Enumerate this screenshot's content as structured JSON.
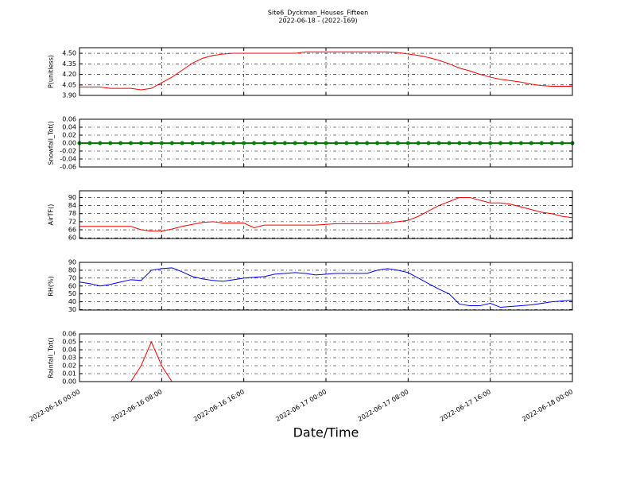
{
  "chart_data": [
    {
      "type": "line",
      "title": "Site6_Dyckman_Houses_Fifteen",
      "subtitle": "2022-06-18 - (2022-169)",
      "ylabel": "P(unitless)",
      "color": "#ff0000",
      "grid": true,
      "xlim": [
        "2022-06-16 00:00",
        "2022-06-18 00:00"
      ],
      "ylim": [
        3.9,
        4.58
      ],
      "yticks": [
        {
          "value": 3.9,
          "label": "3.90"
        },
        4.05,
        {
          "value": 4.2,
          "label": "4.20"
        },
        4.35,
        {
          "value": 4.5,
          "label": "4.50"
        }
      ],
      "x": [
        "2022-06-16 00:00",
        "2022-06-16 01:00",
        "2022-06-16 02:00",
        "2022-06-16 03:00",
        "2022-06-16 04:00",
        "2022-06-16 05:00",
        "2022-06-16 06:00",
        "2022-06-16 07:00",
        "2022-06-16 08:00",
        "2022-06-16 09:00",
        "2022-06-16 10:00",
        "2022-06-16 11:00",
        "2022-06-16 12:00",
        "2022-06-16 13:00",
        "2022-06-16 14:00",
        "2022-06-16 15:00",
        "2022-06-16 16:00",
        "2022-06-16 17:00",
        "2022-06-16 18:00",
        "2022-06-16 19:00",
        "2022-06-16 20:00",
        "2022-06-16 21:00",
        "2022-06-16 22:00",
        "2022-06-16 23:00",
        "2022-06-17 00:00",
        "2022-06-17 01:00",
        "2022-06-17 02:00",
        "2022-06-17 03:00",
        "2022-06-17 04:00",
        "2022-06-17 05:00",
        "2022-06-17 06:00",
        "2022-06-17 07:00",
        "2022-06-17 08:00",
        "2022-06-17 09:00",
        "2022-06-17 10:00",
        "2022-06-17 11:00",
        "2022-06-17 12:00",
        "2022-06-17 13:00",
        "2022-06-17 14:00",
        "2022-06-17 15:00",
        "2022-06-17 16:00",
        "2022-06-17 17:00",
        "2022-06-17 18:00",
        "2022-06-17 19:00",
        "2022-06-17 20:00",
        "2022-06-17 21:00",
        "2022-06-17 22:00",
        "2022-06-17 23:00",
        "2022-06-18 00:00"
      ],
      "values": [
        4.02,
        4.02,
        4.02,
        4.0,
        4.0,
        4.0,
        3.98,
        4.0,
        4.08,
        4.16,
        4.26,
        4.36,
        4.43,
        4.47,
        4.49,
        4.5,
        4.5,
        4.5,
        4.5,
        4.5,
        4.5,
        4.5,
        4.52,
        4.52,
        4.52,
        4.52,
        4.52,
        4.52,
        4.52,
        4.52,
        4.52,
        4.51,
        4.49,
        4.47,
        4.44,
        4.4,
        4.35,
        4.29,
        4.25,
        4.2,
        4.16,
        4.13,
        4.11,
        4.09,
        4.06,
        4.04,
        4.03,
        4.03,
        4.03
      ]
    },
    {
      "type": "line",
      "ylabel": "Snowfall_Tot()",
      "color": "#008000",
      "marker": "circle",
      "grid": true,
      "xlim": [
        "2022-06-16 00:00",
        "2022-06-18 00:00"
      ],
      "ylim": [
        -0.06,
        0.06
      ],
      "yticks": [
        -0.06,
        -0.04,
        -0.02,
        {
          "value": 0,
          "label": "0.00"
        },
        0.02,
        0.04,
        0.06
      ],
      "x": [
        "2022-06-16 00:00",
        "2022-06-16 01:00",
        "2022-06-16 02:00",
        "2022-06-16 03:00",
        "2022-06-16 04:00",
        "2022-06-16 05:00",
        "2022-06-16 06:00",
        "2022-06-16 07:00",
        "2022-06-16 08:00",
        "2022-06-16 09:00",
        "2022-06-16 10:00",
        "2022-06-16 11:00",
        "2022-06-16 12:00",
        "2022-06-16 13:00",
        "2022-06-16 14:00",
        "2022-06-16 15:00",
        "2022-06-16 16:00",
        "2022-06-16 17:00",
        "2022-06-16 18:00",
        "2022-06-16 19:00",
        "2022-06-16 20:00",
        "2022-06-16 21:00",
        "2022-06-16 22:00",
        "2022-06-16 23:00",
        "2022-06-17 00:00",
        "2022-06-17 01:00",
        "2022-06-17 02:00",
        "2022-06-17 03:00",
        "2022-06-17 04:00",
        "2022-06-17 05:00",
        "2022-06-17 06:00",
        "2022-06-17 07:00",
        "2022-06-17 08:00",
        "2022-06-17 09:00",
        "2022-06-17 10:00",
        "2022-06-17 11:00",
        "2022-06-17 12:00",
        "2022-06-17 13:00",
        "2022-06-17 14:00",
        "2022-06-17 15:00",
        "2022-06-17 16:00",
        "2022-06-17 17:00",
        "2022-06-17 18:00",
        "2022-06-17 19:00",
        "2022-06-17 20:00",
        "2022-06-17 21:00",
        "2022-06-17 22:00",
        "2022-06-17 23:00",
        "2022-06-18 00:00"
      ],
      "values": [
        0,
        0,
        0,
        0,
        0,
        0,
        0,
        0,
        0,
        0,
        0,
        0,
        0,
        0,
        0,
        0,
        0,
        0,
        0,
        0,
        0,
        0,
        0,
        0,
        0,
        0,
        0,
        0,
        0,
        0,
        0,
        0,
        0,
        0,
        0,
        0,
        0,
        0,
        0,
        0,
        0,
        0,
        0,
        0,
        0,
        0,
        0,
        0,
        0
      ]
    },
    {
      "type": "line",
      "ylabel": "AirTF()",
      "color": "#ff0000",
      "grid": true,
      "xlim": [
        "2022-06-16 00:00",
        "2022-06-18 00:00"
      ],
      "ylim": [
        59.5,
        95
      ],
      "yticks": [
        60,
        66,
        72,
        78,
        84,
        90
      ],
      "x": [
        "2022-06-16 00:00",
        "2022-06-16 01:00",
        "2022-06-16 02:00",
        "2022-06-16 03:00",
        "2022-06-16 04:00",
        "2022-06-16 05:00",
        "2022-06-16 06:00",
        "2022-06-16 07:00",
        "2022-06-16 08:00",
        "2022-06-16 09:00",
        "2022-06-16 10:00",
        "2022-06-16 11:00",
        "2022-06-16 12:00",
        "2022-06-16 13:00",
        "2022-06-16 14:00",
        "2022-06-16 15:00",
        "2022-06-16 16:00",
        "2022-06-16 17:00",
        "2022-06-16 18:00",
        "2022-06-16 19:00",
        "2022-06-16 20:00",
        "2022-06-16 21:00",
        "2022-06-16 22:00",
        "2022-06-16 23:00",
        "2022-06-17 00:00",
        "2022-06-17 01:00",
        "2022-06-17 02:00",
        "2022-06-17 03:00",
        "2022-06-17 04:00",
        "2022-06-17 05:00",
        "2022-06-17 06:00",
        "2022-06-17 07:00",
        "2022-06-17 08:00",
        "2022-06-17 09:00",
        "2022-06-17 10:00",
        "2022-06-17 11:00",
        "2022-06-17 12:00",
        "2022-06-17 13:00",
        "2022-06-17 14:00",
        "2022-06-17 15:00",
        "2022-06-17 16:00",
        "2022-06-17 17:00",
        "2022-06-17 18:00",
        "2022-06-17 19:00",
        "2022-06-17 20:00",
        "2022-06-17 21:00",
        "2022-06-17 22:00",
        "2022-06-17 23:00",
        "2022-06-18 00:00"
      ],
      "values": [
        68.5,
        68.5,
        68.5,
        68.5,
        68.5,
        68.5,
        66,
        65,
        65,
        66.5,
        68.5,
        70,
        71.5,
        72,
        71,
        71,
        71,
        67.5,
        69.5,
        69.5,
        69.5,
        69.5,
        69.5,
        69.5,
        70,
        70.5,
        70.5,
        70.5,
        70.5,
        70.5,
        71,
        72,
        73,
        76,
        80,
        84,
        87,
        90,
        90,
        88,
        86,
        86,
        85,
        83,
        81,
        79,
        78,
        76,
        75
      ]
    },
    {
      "type": "line",
      "ylabel": "RH(%)",
      "color": "#0000ff",
      "grid": true,
      "xlim": [
        "2022-06-16 00:00",
        "2022-06-18 00:00"
      ],
      "ylim": [
        29.5,
        90
      ],
      "yticks": [
        30,
        40,
        50,
        60,
        70,
        80,
        90
      ],
      "x": [
        "2022-06-16 00:00",
        "2022-06-16 01:00",
        "2022-06-16 02:00",
        "2022-06-16 03:00",
        "2022-06-16 04:00",
        "2022-06-16 05:00",
        "2022-06-16 06:00",
        "2022-06-16 07:00",
        "2022-06-16 08:00",
        "2022-06-16 09:00",
        "2022-06-16 10:00",
        "2022-06-16 11:00",
        "2022-06-16 12:00",
        "2022-06-16 13:00",
        "2022-06-16 14:00",
        "2022-06-16 15:00",
        "2022-06-16 16:00",
        "2022-06-16 17:00",
        "2022-06-16 18:00",
        "2022-06-16 19:00",
        "2022-06-16 20:00",
        "2022-06-16 21:00",
        "2022-06-16 22:00",
        "2022-06-16 23:00",
        "2022-06-17 00:00",
        "2022-06-17 01:00",
        "2022-06-17 02:00",
        "2022-06-17 03:00",
        "2022-06-17 04:00",
        "2022-06-17 05:00",
        "2022-06-17 06:00",
        "2022-06-17 07:00",
        "2022-06-17 08:00",
        "2022-06-17 09:00",
        "2022-06-17 10:00",
        "2022-06-17 11:00",
        "2022-06-17 12:00",
        "2022-06-17 13:00",
        "2022-06-17 14:00",
        "2022-06-17 15:00",
        "2022-06-17 16:00",
        "2022-06-17 17:00",
        "2022-06-17 18:00",
        "2022-06-17 19:00",
        "2022-06-17 20:00",
        "2022-06-17 21:00",
        "2022-06-17 22:00",
        "2022-06-17 23:00",
        "2022-06-18 00:00"
      ],
      "values": [
        65,
        63,
        60,
        62,
        65,
        68,
        67,
        80,
        82,
        83,
        78,
        72,
        69,
        67,
        66,
        68,
        70,
        71,
        72,
        75,
        76,
        77,
        76,
        74,
        75,
        76,
        76,
        76,
        76,
        80,
        82,
        80,
        77,
        70,
        63,
        56,
        50,
        37,
        35,
        35,
        38,
        33,
        34,
        35,
        36,
        38,
        40,
        41,
        42
      ]
    },
    {
      "type": "line",
      "ylabel": "Rainfall_Tot()",
      "xlabel": "Date/Time",
      "color": "#ff0000",
      "grid": true,
      "xlim": [
        "2022-06-16 00:00",
        "2022-06-18 00:00"
      ],
      "xticks": [
        "2022-06-16 00:00",
        "2022-06-16 08:00",
        "2022-06-16 16:00",
        "2022-06-17 00:00",
        "2022-06-17 08:00",
        "2022-06-17 16:00",
        "2022-06-18 00:00"
      ],
      "ylim": [
        0,
        0.06
      ],
      "yticks": [
        {
          "value": 0,
          "label": "0.00"
        },
        0.01,
        0.02,
        0.03,
        0.04,
        0.05,
        0.06
      ],
      "x": [
        "2022-06-16 00:00",
        "2022-06-16 01:00",
        "2022-06-16 02:00",
        "2022-06-16 03:00",
        "2022-06-16 04:00",
        "2022-06-16 05:00",
        "2022-06-16 06:00",
        "2022-06-16 07:00",
        "2022-06-16 08:00",
        "2022-06-16 09:00",
        "2022-06-16 10:00",
        "2022-06-16 11:00",
        "2022-06-16 12:00",
        "2022-06-16 13:00",
        "2022-06-16 14:00",
        "2022-06-16 15:00",
        "2022-06-16 16:00",
        "2022-06-16 17:00",
        "2022-06-16 18:00",
        "2022-06-16 19:00",
        "2022-06-16 20:00",
        "2022-06-16 21:00",
        "2022-06-16 22:00",
        "2022-06-16 23:00",
        "2022-06-17 00:00",
        "2022-06-17 01:00",
        "2022-06-17 02:00",
        "2022-06-17 03:00",
        "2022-06-17 04:00",
        "2022-06-17 05:00",
        "2022-06-17 06:00",
        "2022-06-17 07:00",
        "2022-06-17 08:00",
        "2022-06-17 09:00",
        "2022-06-17 10:00",
        "2022-06-17 11:00",
        "2022-06-17 12:00",
        "2022-06-17 13:00",
        "2022-06-17 14:00",
        "2022-06-17 15:00",
        "2022-06-17 16:00",
        "2022-06-17 17:00",
        "2022-06-17 18:00",
        "2022-06-17 19:00",
        "2022-06-17 20:00",
        "2022-06-17 21:00",
        "2022-06-17 22:00",
        "2022-06-17 23:00",
        "2022-06-18 00:00"
      ],
      "values": [
        0,
        0,
        0,
        0,
        0,
        0,
        0.02,
        0.05,
        0.02,
        0,
        0,
        0,
        0,
        0,
        0,
        0,
        0,
        0,
        0,
        0,
        0,
        0,
        0,
        0,
        0,
        0,
        0,
        0,
        0,
        0,
        0,
        0,
        0,
        0,
        0,
        0,
        0,
        0,
        0,
        0,
        0,
        0,
        0,
        0,
        0,
        0,
        0,
        0,
        0
      ]
    }
  ]
}
